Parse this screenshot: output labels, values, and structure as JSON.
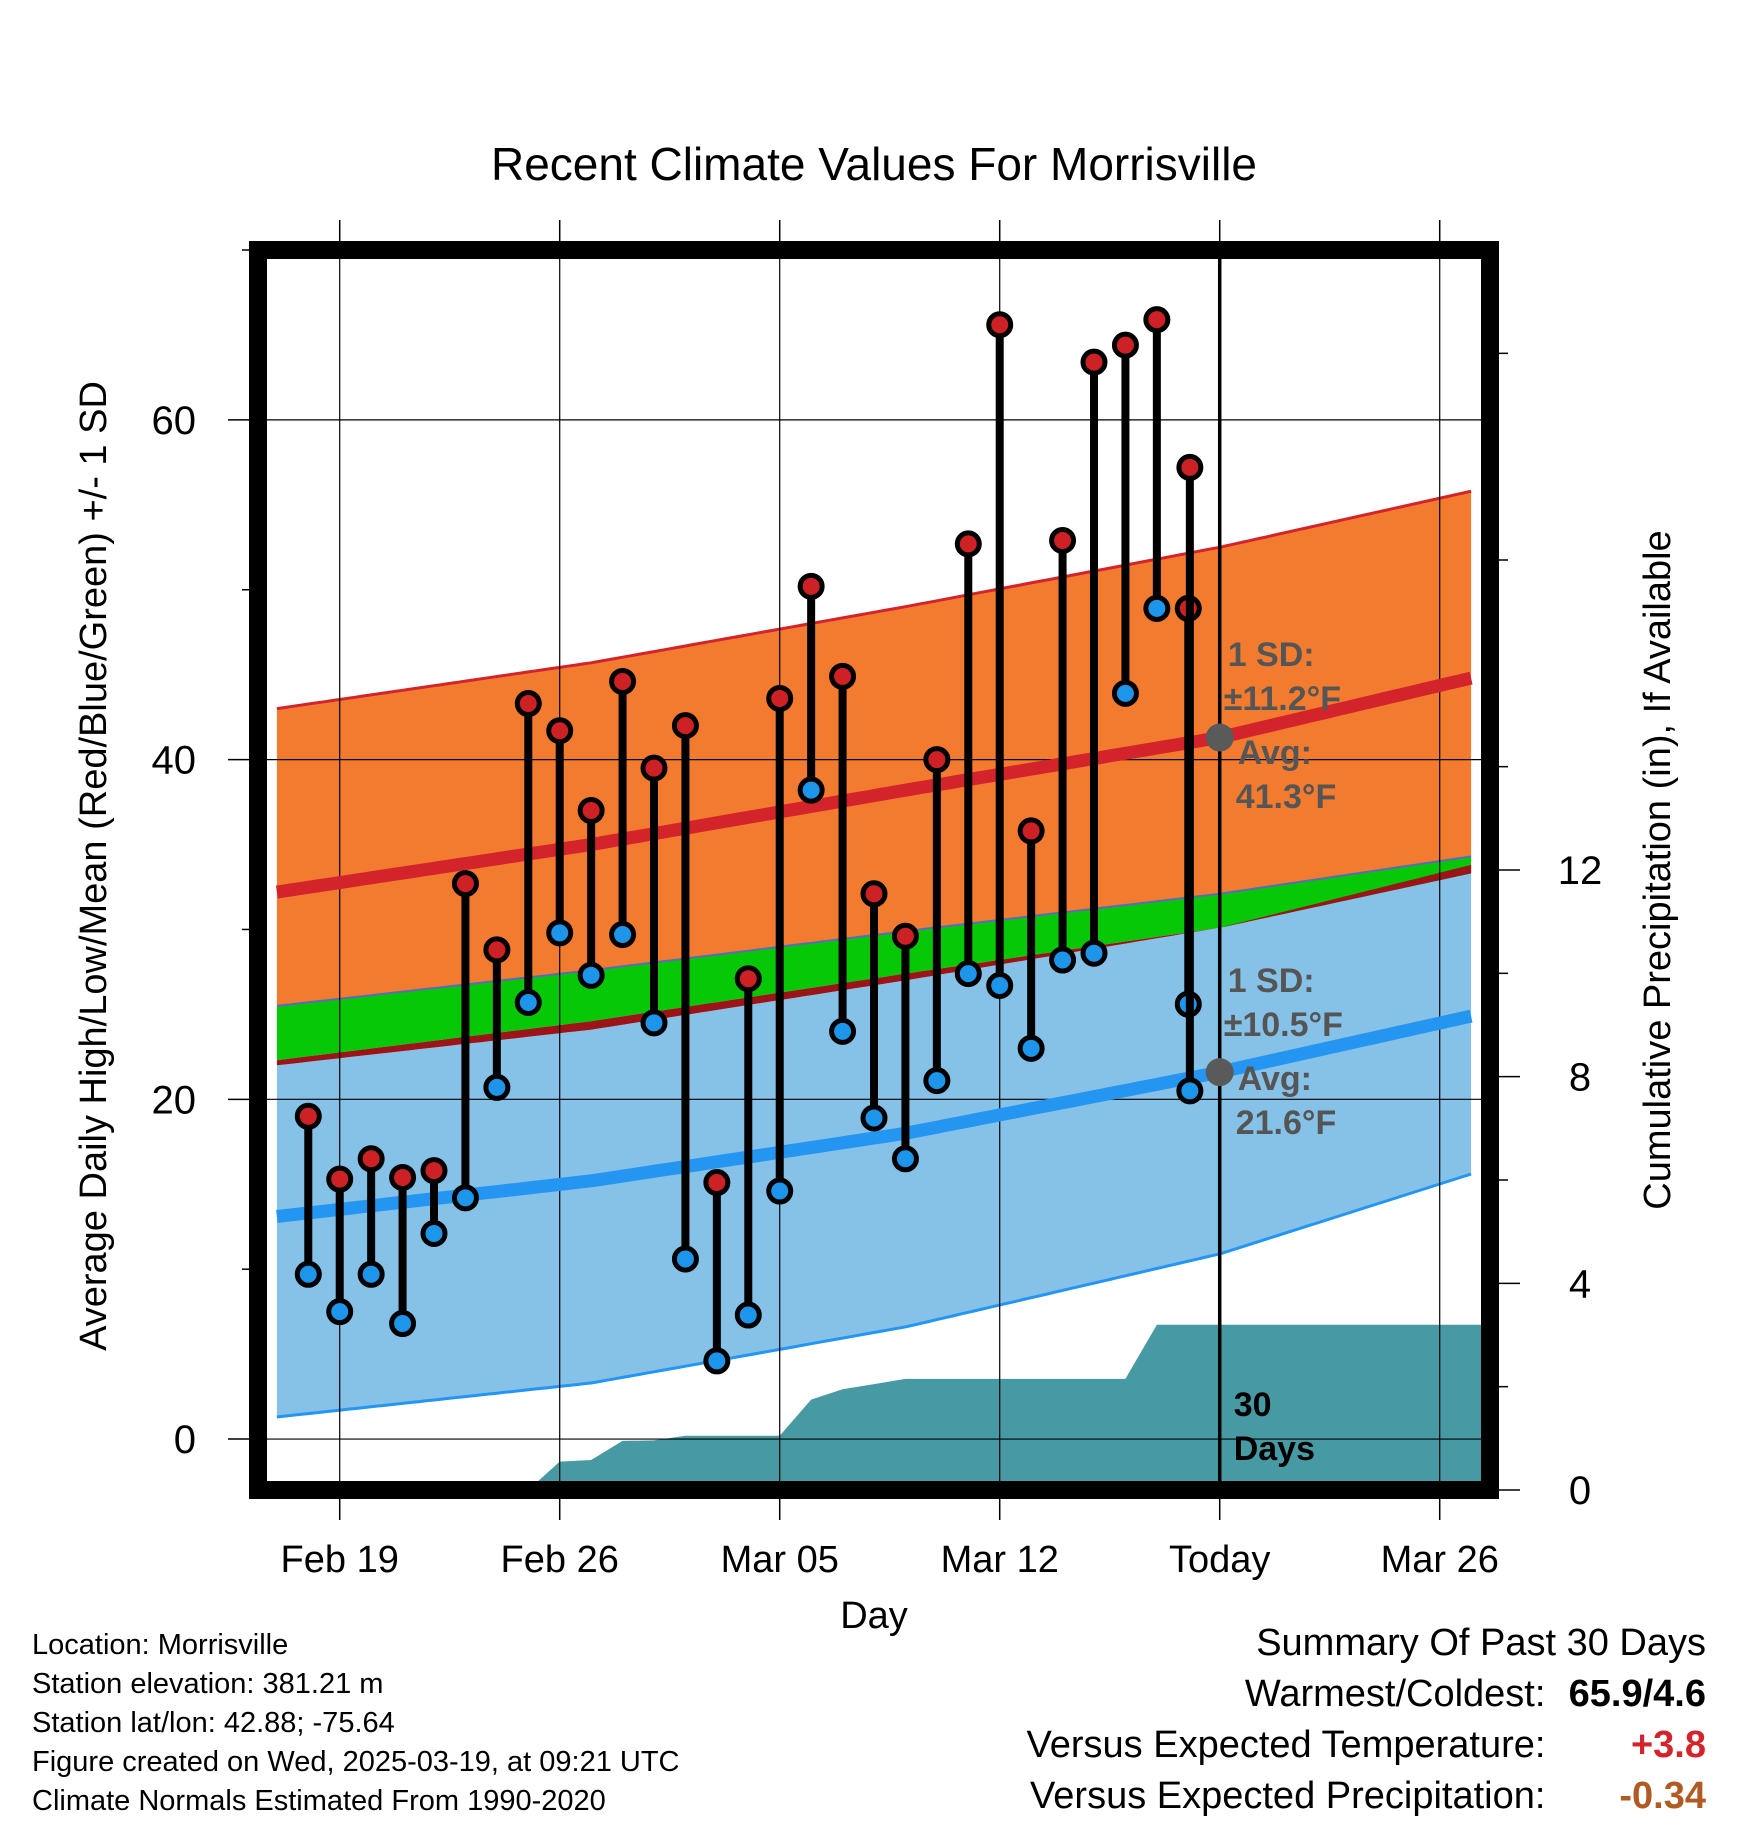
{
  "chart_data": {
    "type": "line",
    "title": "Recent Climate Values For Morrisville",
    "xlabel": "Day",
    "ylabel": "Average Daily High/Low/Mean (Red/Blue/Green) +/- 1 SD",
    "y2label": "Cumulative Precipitation (in), If Available",
    "x_tick_labels": [
      "Feb 19",
      "Feb 26",
      "Mar 05",
      "Mar 12",
      "Today",
      "Mar 26"
    ],
    "x_tick_days": [
      2,
      9,
      16,
      23,
      30,
      37
    ],
    "xlim": [
      -0.6,
      38.6
    ],
    "y_ticks": [
      0,
      20,
      40,
      60
    ],
    "ylim": [
      -3.0,
      70.0
    ],
    "y2_ticks": [
      0,
      4,
      8,
      12
    ],
    "y2lim": [
      0,
      24
    ],
    "today_day": 30,
    "grid": true,
    "normals": {
      "days": [
        0,
        10,
        20,
        30,
        38
      ],
      "high_mean": [
        32.2,
        35.0,
        38.2,
        41.3,
        44.8
      ],
      "high_upper": [
        43.0,
        45.7,
        49.0,
        52.5,
        55.8
      ],
      "high_lower": [
        25.5,
        27.6,
        29.9,
        32.1,
        34.3
      ],
      "mean_lower": [
        22.3,
        24.6,
        27.4,
        30.1,
        33.3
      ],
      "low_mean": [
        13.1,
        15.2,
        18.0,
        21.6,
        24.9
      ],
      "low_upper": [
        22.0,
        24.1,
        27.0,
        30.1,
        33.8
      ],
      "low_lower": [
        1.3,
        3.3,
        6.6,
        10.9,
        15.6
      ]
    },
    "observations": {
      "days": [
        1,
        2,
        3,
        4,
        5,
        6,
        7,
        8,
        9,
        10,
        11,
        12,
        13,
        14,
        15,
        16,
        17,
        18,
        19,
        20,
        21,
        22,
        23,
        24,
        25,
        26,
        27,
        28,
        29
      ],
      "high": [
        19.0,
        15.3,
        16.5,
        15.4,
        15.8,
        32.7,
        28.8,
        43.3,
        41.7,
        37.0,
        44.6,
        39.5,
        42.0,
        15.1,
        27.1,
        43.6,
        50.2,
        44.9,
        32.1,
        29.6,
        40.0,
        52.7,
        65.6,
        35.8,
        52.9,
        63.4,
        64.4,
        65.9,
        48.9
      ],
      "low": [
        9.7,
        7.5,
        9.7,
        6.8,
        12.1,
        14.2,
        20.7,
        25.7,
        29.8,
        27.3,
        29.7,
        24.5,
        10.6,
        4.6,
        7.3,
        14.6,
        38.2,
        24.0,
        18.9,
        16.5,
        21.1,
        27.4,
        26.7,
        23.0,
        28.2,
        28.6,
        43.9,
        48.9,
        25.6
      ],
      "high30": 57.2,
      "low30": 20.5
    },
    "precipitation": {
      "days": [
        0,
        8,
        9,
        10,
        11,
        12,
        13,
        14,
        15,
        16,
        17,
        18,
        19,
        20,
        21,
        22,
        23,
        24,
        25,
        26,
        27,
        28,
        38.6
      ],
      "cumulative": [
        0,
        0,
        0.55,
        0.58,
        0.95,
        0.96,
        1.05,
        1.05,
        1.05,
        1.05,
        1.75,
        1.95,
        2.05,
        2.15,
        2.15,
        2.15,
        2.15,
        2.15,
        2.15,
        2.15,
        2.15,
        3.2,
        3.2
      ]
    },
    "annotations": {
      "high_sd_label": "1 SD:",
      "high_sd_value": "±11.2°F",
      "high_avg_label": "Avg:",
      "high_avg_value": "41.3°F",
      "low_sd_label": "1 SD:",
      "low_sd_value": "±10.5°F",
      "low_avg_label": "Avg:",
      "low_avg_value": "21.6°F",
      "precip_days_1": "30",
      "precip_days_2": "Days"
    },
    "colors": {
      "high_band": "#f27b30",
      "high_line": "#d4242b",
      "low_band": "#86c1e7",
      "low_line": "#2496f2",
      "mean_band": "#06c806",
      "overlap_band": "#9a1418",
      "precip_fill": "#479aa3",
      "marker_high": "#cd2126",
      "marker_low": "#1c95ea",
      "avg_marker": "#5a5a5a"
    }
  },
  "footer": {
    "location": "Location: Morrisville",
    "elevation": "Station elevation: 381.21 m",
    "latlon": "Station lat/lon: 42.88; -75.64",
    "created": "Figure created on Wed, 2025-03-19, at 09:21 UTC",
    "normals": "Climate Normals Estimated From 1990-2020"
  },
  "summary": {
    "title": "Summary Of Past 30 Days",
    "warmest_label": "Warmest/Coldest:",
    "warmest_value": "65.9/4.6",
    "temp_label": "Versus Expected Temperature:",
    "temp_value": "+3.8",
    "temp_color": "#d4242b",
    "precip_label": "Versus Expected Precipitation:",
    "precip_value": "-0.34",
    "precip_color": "#b05a24"
  }
}
